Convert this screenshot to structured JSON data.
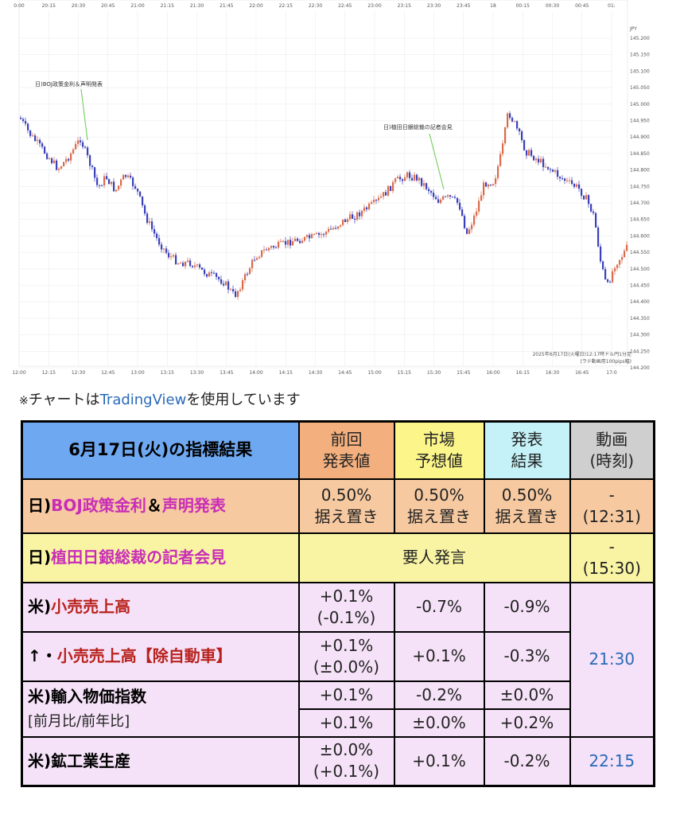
{
  "chart": {
    "time_labels": [
      "0:00",
      "20:15",
      "20:30",
      "20:45",
      "21:00",
      "21:15",
      "21:30",
      "21:45",
      "22:00",
      "22:15",
      "22:30",
      "22:45",
      "23:00",
      "23:15",
      "23:30",
      "23:45",
      "18",
      "00:15",
      "00:30",
      "00:45",
      "01:"
    ],
    "bottom_time_labels": [
      "12:00",
      "12:15",
      "12:30",
      "12:45",
      "13:00",
      "13:15",
      "13:30",
      "13:45",
      "14:00",
      "14:15",
      "14:30",
      "14:45",
      "15:00",
      "15:15",
      "15:30",
      "15:45",
      "16:00",
      "16:15",
      "16:30",
      "16:45",
      "17:0"
    ],
    "currency_label": "JPY",
    "price_labels": [
      "145.200",
      "145.150",
      "145.100",
      "145.050",
      "145.000",
      "144.950",
      "144.900",
      "144.850",
      "144.800",
      "144.750",
      "144.700",
      "144.650",
      "144.600",
      "144.550",
      "144.500",
      "144.450",
      "144.400",
      "144.350",
      "144.300",
      "144.250",
      "144.200"
    ],
    "annotation_1": "日)BOJ政策金利＆声明発表",
    "annotation_2": "日)植田日銀総裁の記者会見",
    "footer_line1": "2025年6月17日(火曜日)12:17時ドル円1分足",
    "footer_line2": "(ラテ動画用100pips幅)",
    "line_color": "#7ed06a"
  },
  "credit": {
    "prefix": "※",
    "text_before": "チャートは",
    "link": "TradingView",
    "text_after": "を使用しています"
  },
  "table": {
    "header": {
      "title": "6月17日(火)の指標結果",
      "prev_1": "前回",
      "prev_2": "発表値",
      "fc_1": "市場",
      "fc_2": "予想値",
      "res_1": "発表",
      "res_2": "結果",
      "time_1": "動画",
      "time_2": "(時刻)"
    },
    "boj": {
      "prefix": "日)",
      "name_1": "BOJ政策金利",
      "amp": "＆",
      "name_2": "声明発表",
      "prev_1": "0.50%",
      "prev_2": "据え置き",
      "fc_1": "0.50%",
      "fc_2": "据え置き",
      "res_1": "0.50%",
      "res_2": "据え置き",
      "time_1": "-",
      "time_2": "(12:31)"
    },
    "ueda": {
      "prefix": "日)",
      "name": "植田日銀総裁の記者会見",
      "result": "要人発言",
      "time_1": "-",
      "time_2": "(15:30)"
    },
    "retail": {
      "prefix": "米)",
      "name": "小売売上高",
      "prev_1": "+0.1%",
      "prev_2": "(-0.1%)",
      "fc": "-0.7%",
      "res": "-0.9%"
    },
    "retail_ex": {
      "prefix": "↑・",
      "name": "小売売上高【除自動車】",
      "prev_1": "+0.1%",
      "prev_2": "(±0.0%)",
      "fc": "+0.1%",
      "res": "-0.3%"
    },
    "us_time": "21:30",
    "import": {
      "prefix": "米)",
      "name": "輸入物価指数",
      "sub": "[前月比/前年比]",
      "prev_a": "+0.1%",
      "fc_a": "-0.2%",
      "res_a": "±0.0%",
      "prev_b": "+0.1%",
      "fc_b": "±0.0%",
      "res_b": "+0.2%"
    },
    "ip": {
      "prefix": "米)",
      "name": "鉱工業生産",
      "prev_1": "±0.0%",
      "prev_2": "(+0.1%)",
      "fc": "+0.1%",
      "res": "-0.2%",
      "time": "22:15"
    }
  }
}
